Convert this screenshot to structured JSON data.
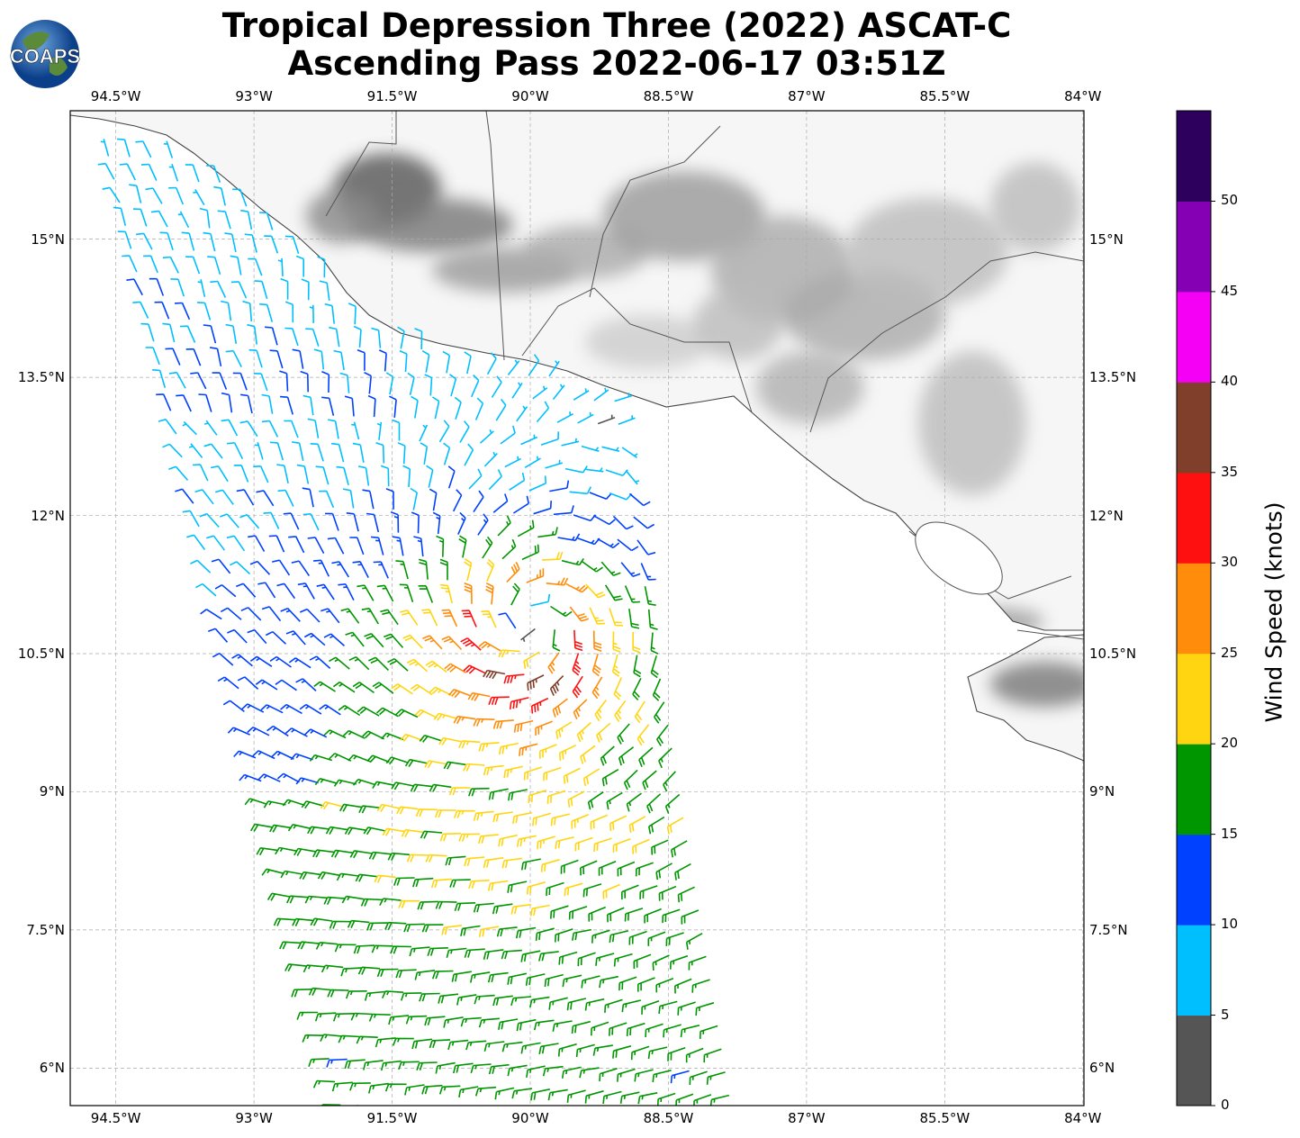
{
  "title": {
    "line1": "Tropical Depression Three (2022) ASCAT-C",
    "line2": "Ascending Pass 2022-06-17 03:51Z"
  },
  "logo": {
    "text": "COAPS"
  },
  "map": {
    "lon_ticks": [
      {
        "value": -94.5,
        "label": "94.5°W"
      },
      {
        "value": -93,
        "label": "93°W"
      },
      {
        "value": -91.5,
        "label": "91.5°W"
      },
      {
        "value": -90,
        "label": "90°W"
      },
      {
        "value": -88.5,
        "label": "88.5°W"
      },
      {
        "value": -87,
        "label": "87°W"
      },
      {
        "value": -85.5,
        "label": "85.5°W"
      },
      {
        "value": -84,
        "label": "84°W"
      }
    ],
    "lat_ticks": [
      {
        "value": 15,
        "label": "15°N"
      },
      {
        "value": 13.5,
        "label": "13.5°N"
      },
      {
        "value": 12,
        "label": "12°N"
      },
      {
        "value": 10.5,
        "label": "10.5°N"
      },
      {
        "value": 9,
        "label": "9°N"
      },
      {
        "value": 7.5,
        "label": "7.5°N"
      },
      {
        "value": 6,
        "label": "6°N"
      }
    ],
    "extent": {
      "lon": [
        -95.0,
        -84.0
      ],
      "lat": [
        5.6,
        16.4
      ]
    },
    "storm_center": {
      "lon": -90.0,
      "lat": 10.85
    },
    "max_wind_kt": 33
  },
  "colorbar": {
    "label": "Wind Speed (knots)",
    "range": [
      0,
      55
    ],
    "ticks": [
      "0",
      "5",
      "10",
      "15",
      "20",
      "25",
      "30",
      "35",
      "40",
      "45",
      "50"
    ],
    "colors": [
      "#555555",
      "#00bfff",
      "#0040ff",
      "#009600",
      "#ffd511",
      "#ff8c0a",
      "#ff1010",
      "#7f3f2a",
      "#f500f5",
      "#8500b5",
      "#2c005c"
    ]
  }
}
